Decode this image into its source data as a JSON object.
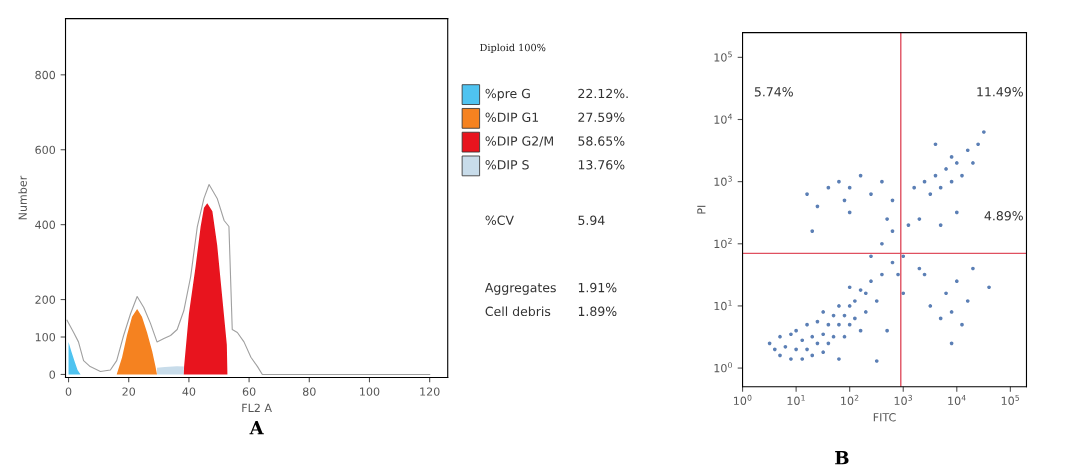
{
  "chart_data": [
    {
      "type": "area",
      "xlabel": "FL2 A",
      "ylabel": "Number",
      "xlim": [
        -1,
        126
      ],
      "ylim": [
        -8,
        950
      ],
      "xticks": [
        0,
        20,
        40,
        60,
        80,
        100,
        120
      ],
      "yticks": [
        0,
        100,
        200,
        400,
        600,
        800
      ],
      "grid": false,
      "annotations": [
        "A"
      ],
      "series": [
        {
          "type": "area",
          "color": "#c8dcea",
          "x": [
            29.4,
            32,
            36,
            38.3
          ],
          "values": [
            18,
            20,
            22,
            21
          ]
        },
        {
          "type": "area",
          "color": "#4fc3f0",
          "x": [
            0,
            1,
            2,
            3,
            4
          ],
          "values": [
            87,
            60,
            35,
            12,
            0
          ]
        },
        {
          "type": "area",
          "color": "#f58220",
          "x": [
            16,
            17.8,
            19.4,
            21.1,
            22.8,
            24.4,
            26.1,
            27.8,
            28.9,
            29.4
          ],
          "values": [
            0,
            46,
            104,
            154,
            175,
            154,
            112,
            62,
            21,
            0
          ]
        },
        {
          "type": "area",
          "color": "#e8141e",
          "x": [
            38.3,
            38.4,
            40,
            42.2,
            43.9,
            45,
            46.1,
            47.8,
            49.4,
            51.1,
            52.6,
            52.8
          ],
          "values": [
            0,
            21,
            162,
            287,
            395,
            445,
            457,
            436,
            345,
            204,
            79,
            0
          ]
        },
        {
          "type": "line",
          "color": "#a0a0a0",
          "x": [
            -0.5,
            1.7,
            3.3,
            5,
            7.2,
            10.6,
            13.9,
            16,
            18.3,
            20.6,
            22.8,
            25,
            27.2,
            29.4,
            31.7,
            33.9,
            36.1,
            38.3,
            40.6,
            42.8,
            45,
            46.7,
            49.4,
            51.7,
            53.3,
            54.4,
            56.1,
            58.3,
            60.6,
            62.8,
            64.4,
            120
          ],
          "values": [
            145,
            112,
            87,
            37,
            21,
            8,
            12,
            37,
            104,
            162,
            208,
            179,
            137,
            87,
            96,
            104,
            120,
            170,
            262,
            395,
            470,
            507,
            470,
            411,
            395,
            120,
            112,
            87,
            46,
            21,
            0,
            0
          ]
        }
      ]
    },
    {
      "type": "other",
      "title": "Diploid 100%",
      "categories": [
        "%pre G",
        "%DIP G1",
        "%DIP G2/M",
        "%DIP S"
      ],
      "value_labels": [
        "22.12%.",
        "27.59%",
        "58.65%",
        "13.76%"
      ],
      "colors": [
        "#4fc3f0",
        "#f58220",
        "#e8141e",
        "#c8dcea"
      ],
      "annotations": [
        "%CV",
        "5.94",
        "Aggregates",
        "1.91%",
        "Cell debris",
        "1.89%"
      ]
    },
    {
      "type": "scatter",
      "xlabel": "FITC",
      "ylabel": "PI",
      "log": "xy",
      "xlim": [
        1,
        200000
      ],
      "ylim": [
        0.5,
        250000
      ],
      "xticks": [
        {
          "value": 1,
          "label": "10$^{0}$"
        },
        {
          "value": 10,
          "label": "10$^{1}$"
        },
        {
          "value": 100,
          "label": "10$^{2}$"
        },
        {
          "value": 1000,
          "label": "10$^{3}$"
        },
        {
          "value": 10000,
          "label": "10$^{4}$"
        },
        {
          "value": 100000,
          "label": "10$^{5}$"
        }
      ],
      "yticks": [
        {
          "value": 1,
          "label": "10$^{0}$"
        },
        {
          "value": 10,
          "label": "10$^{1}$"
        },
        {
          "value": 100,
          "label": "10$^{2}$"
        },
        {
          "value": 1000,
          "label": "10$^{3}$"
        },
        {
          "value": 10000,
          "label": "10$^{4}$"
        },
        {
          "value": 100000,
          "label": "10$^{5}$"
        }
      ],
      "grid": false,
      "marker": "circle",
      "ref_lines": [
        {
          "axis": "x",
          "value": 900,
          "color": "#e05060"
        },
        {
          "axis": "y",
          "value": 70,
          "color": "#e05060"
        }
      ],
      "annotations": [
        "5.74%",
        "11.49%",
        "4.89%",
        "B"
      ],
      "series": [
        {
          "color": "#5b7fb5",
          "x": [
            4,
            5,
            5,
            6.3,
            8,
            8,
            10,
            10,
            13,
            13,
            16,
            16,
            20,
            20,
            25,
            25,
            32,
            32,
            40,
            40,
            50,
            50,
            63,
            63,
            80,
            80,
            100,
            100,
            125,
            125,
            160,
            160,
            200,
            200,
            250,
            320,
            400,
            500,
            630,
            320,
            63,
            3.2,
            32,
            100,
            250,
            400,
            630,
            800,
            1000,
            1250,
            1000,
            500,
            16,
            25,
            40,
            63,
            80,
            100,
            160,
            250,
            400,
            630,
            20,
            100,
            1600,
            2500,
            3200,
            4000,
            5000,
            6300,
            8000,
            10000,
            12500,
            16000,
            20000,
            25000,
            4000,
            10000,
            5000,
            32000,
            2000,
            8000,
            2000,
            3200,
            5000,
            6300,
            8000,
            10000,
            12500,
            16000,
            20000,
            8000,
            40000,
            2500
          ],
          "values": [
            2,
            1.6,
            3.2,
            2.2,
            1.4,
            3.5,
            2,
            4,
            1.4,
            2.8,
            2,
            5,
            3.2,
            1.6,
            2.5,
            5.6,
            3.5,
            1.8,
            5,
            2.5,
            7,
            3.2,
            5,
            10,
            7,
            3.2,
            10,
            5,
            12,
            6.3,
            18,
            4,
            16,
            8,
            25,
            12,
            32,
            4,
            50,
            1.3,
            1.4,
            2.5,
            8,
            20,
            63,
            100,
            160,
            32,
            63,
            200,
            16,
            250,
            630,
            400,
            800,
            1000,
            500,
            800,
            1250,
            630,
            1000,
            500,
            160,
            320,
            800,
            1000,
            630,
            1250,
            800,
            1600,
            1000,
            2000,
            1250,
            3200,
            2000,
            4000,
            4000,
            320,
            200,
            6300,
            250,
            2500,
            40,
            10,
            6.3,
            16,
            8,
            25,
            5,
            12,
            40,
            2.5,
            20,
            32
          ]
        }
      ]
    }
  ]
}
